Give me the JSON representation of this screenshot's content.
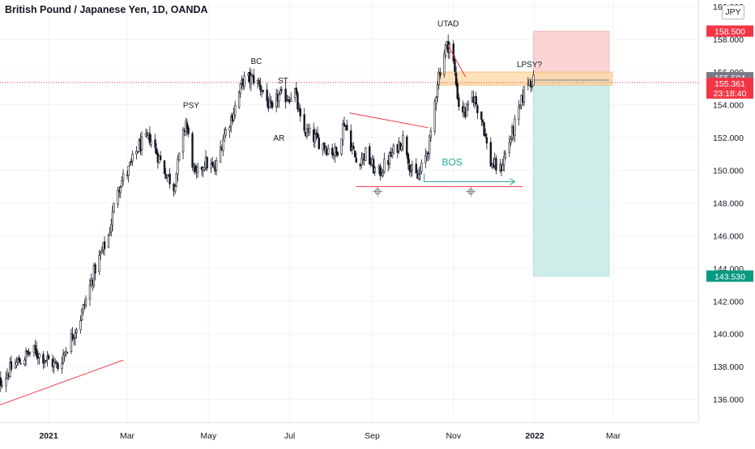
{
  "title": "British Pound / Japanese Yen, 1D, OANDA",
  "currency": "JPY",
  "colors": {
    "up": "#131722",
    "down": "#131722",
    "grid": "#f0f3fa",
    "axis_text": "#131722",
    "red_line": "#f23645",
    "teal": "#26a69a",
    "stop_fill": "#f8c4c4",
    "target_fill": "#c8ebe7",
    "zone_fill": "#fcd9a8",
    "price_label_current": "#f23645",
    "price_label_stop": "#f23645",
    "price_label_target": "#089981",
    "price_label_gray": "#787b86"
  },
  "chart_data": {
    "type": "candlestick",
    "title": "British Pound / Japanese Yen, 1D, OANDA",
    "ylim": [
      134.6,
      160.4
    ],
    "y_ticks": [
      136,
      138,
      140,
      142,
      144,
      146,
      148,
      150,
      152,
      154,
      156,
      158,
      160
    ],
    "y_tick_labels": [
      "136.000",
      "138.000",
      "140.000",
      "142.000",
      "144.000",
      "146.000",
      "148.000",
      "150.000",
      "152.000",
      "154.000",
      "156.000",
      "158.000",
      "160.000"
    ],
    "x_ticks": [
      {
        "label": "2021",
        "x": "2021-01-01",
        "bold": true
      },
      {
        "label": "Mar",
        "x": "2021-03-01"
      },
      {
        "label": "May",
        "x": "2021-05-01"
      },
      {
        "label": "Jul",
        "x": "2021-07-01"
      },
      {
        "label": "Sep",
        "x": "2021-09-01"
      },
      {
        "label": "Nov",
        "x": "2021-11-01"
      },
      {
        "label": "2022",
        "x": "2022-01-01",
        "bold": true
      },
      {
        "label": "Mar",
        "x": "2022-03-01"
      }
    ],
    "price_path": [
      [
        "2020-11-20",
        136.5
      ],
      [
        "2020-12-05",
        138.0
      ],
      [
        "2020-12-20",
        139.0
      ],
      [
        "2021-01-08",
        138.0
      ],
      [
        "2021-01-25",
        141.0
      ],
      [
        "2021-02-05",
        144.0
      ],
      [
        "2021-02-15",
        146.0
      ],
      [
        "2021-02-22",
        149.0
      ],
      [
        "2021-03-02",
        150.0
      ],
      [
        "2021-03-10",
        151.5
      ],
      [
        "2021-03-18",
        152.0
      ],
      [
        "2021-03-29",
        150.0
      ],
      [
        "2021-04-05",
        149.0
      ],
      [
        "2021-04-14",
        153.0
      ],
      [
        "2021-04-21",
        149.5
      ],
      [
        "2021-04-28",
        150.5
      ],
      [
        "2021-05-06",
        150.0
      ],
      [
        "2021-05-12",
        152.0
      ],
      [
        "2021-05-20",
        153.6
      ],
      [
        "2021-05-27",
        155.5
      ],
      [
        "2021-06-04",
        155.6
      ],
      [
        "2021-06-10",
        155.0
      ],
      [
        "2021-06-18",
        153.5
      ],
      [
        "2021-06-22",
        154.5
      ],
      [
        "2021-06-30",
        154.5
      ],
      [
        "2021-07-05",
        154.8
      ],
      [
        "2021-07-10",
        152.5
      ],
      [
        "2021-07-19",
        152.0
      ],
      [
        "2021-07-27",
        151.5
      ],
      [
        "2021-08-05",
        151.0
      ],
      [
        "2021-08-11",
        153.0
      ],
      [
        "2021-08-20",
        150.5
      ],
      [
        "2021-08-27",
        151.0
      ],
      [
        "2021-09-05",
        149.7
      ],
      [
        "2021-09-12",
        150.5
      ],
      [
        "2021-09-20",
        151.5
      ],
      [
        "2021-09-25",
        152.0
      ],
      [
        "2021-09-30",
        150.0
      ],
      [
        "2021-10-05",
        149.5
      ],
      [
        "2021-10-10",
        150.5
      ],
      [
        "2021-10-15",
        152.0
      ],
      [
        "2021-10-20",
        155.5
      ],
      [
        "2021-10-26",
        157.5
      ],
      [
        "2021-10-30",
        157.8
      ],
      [
        "2021-11-05",
        154.0
      ],
      [
        "2021-11-10",
        153.5
      ],
      [
        "2021-11-16",
        154.5
      ],
      [
        "2021-11-23",
        153.0
      ],
      [
        "2021-11-28",
        150.5
      ],
      [
        "2021-12-06",
        150.0
      ],
      [
        "2021-12-12",
        151.5
      ],
      [
        "2021-12-20",
        153.5
      ],
      [
        "2021-12-26",
        155.5
      ],
      [
        "2021-12-31",
        155.45
      ]
    ],
    "annotations": [
      {
        "text": "PSY",
        "x": "2021-04-18",
        "y": 153.8
      },
      {
        "text": "BC",
        "x": "2021-06-06",
        "y": 156.5
      },
      {
        "text": "ST",
        "x": "2021-06-26",
        "y": 155.3
      },
      {
        "text": "AR",
        "x": "2021-06-23",
        "y": 151.8
      },
      {
        "text": "UTAD",
        "x": "2021-10-28",
        "y": 158.8
      },
      {
        "text": "LPSY?",
        "x": "2021-12-28",
        "y": 156.3
      },
      {
        "text": "BOS",
        "x": "2021-10-31",
        "y": 150.3
      }
    ],
    "lines": [
      {
        "name": "rising-trendline",
        "x1": "2020-11-20",
        "y1": 135.5,
        "x2": "2021-02-26",
        "y2": 138.4
      },
      {
        "name": "falling-resistance",
        "x1": "2021-08-15",
        "y1": 153.5,
        "x2": "2021-10-13",
        "y2": 152.6
      },
      {
        "name": "support-line",
        "x1": "2021-08-20",
        "y1": 149.0,
        "x2": "2021-12-23",
        "y2": 149.0
      },
      {
        "name": "utad-trendline",
        "x1": "2021-10-28",
        "y1": 157.6,
        "x2": "2021-11-10",
        "y2": 155.7
      }
    ],
    "bos_arrow": {
      "x1": "2021-10-10",
      "x2": "2021-12-17",
      "y": 149.3
    },
    "pivot_markers": [
      {
        "x": "2021-09-05",
        "y": 148.7
      },
      {
        "x": "2021-11-14",
        "y": 148.7
      }
    ],
    "supply_zone": {
      "x1": "2021-10-20",
      "x2": "2022-02-28",
      "y_low": 155.2,
      "y_high": 156.0
    },
    "position": {
      "x1": "2021-12-31",
      "x2": "2022-02-26",
      "entry": 155.504,
      "stop": 158.5,
      "target": 143.53
    },
    "current_price_line": 155.361,
    "price_labels": [
      {
        "value": 158.5,
        "text": "158.500",
        "kind": "stop"
      },
      {
        "value": 155.504,
        "text": "155.504",
        "kind": "gray"
      },
      {
        "value": 155.361,
        "text": "155.361",
        "sub": "23:18:40",
        "kind": "current"
      },
      {
        "value": 143.53,
        "text": "143.530",
        "kind": "target"
      }
    ]
  }
}
